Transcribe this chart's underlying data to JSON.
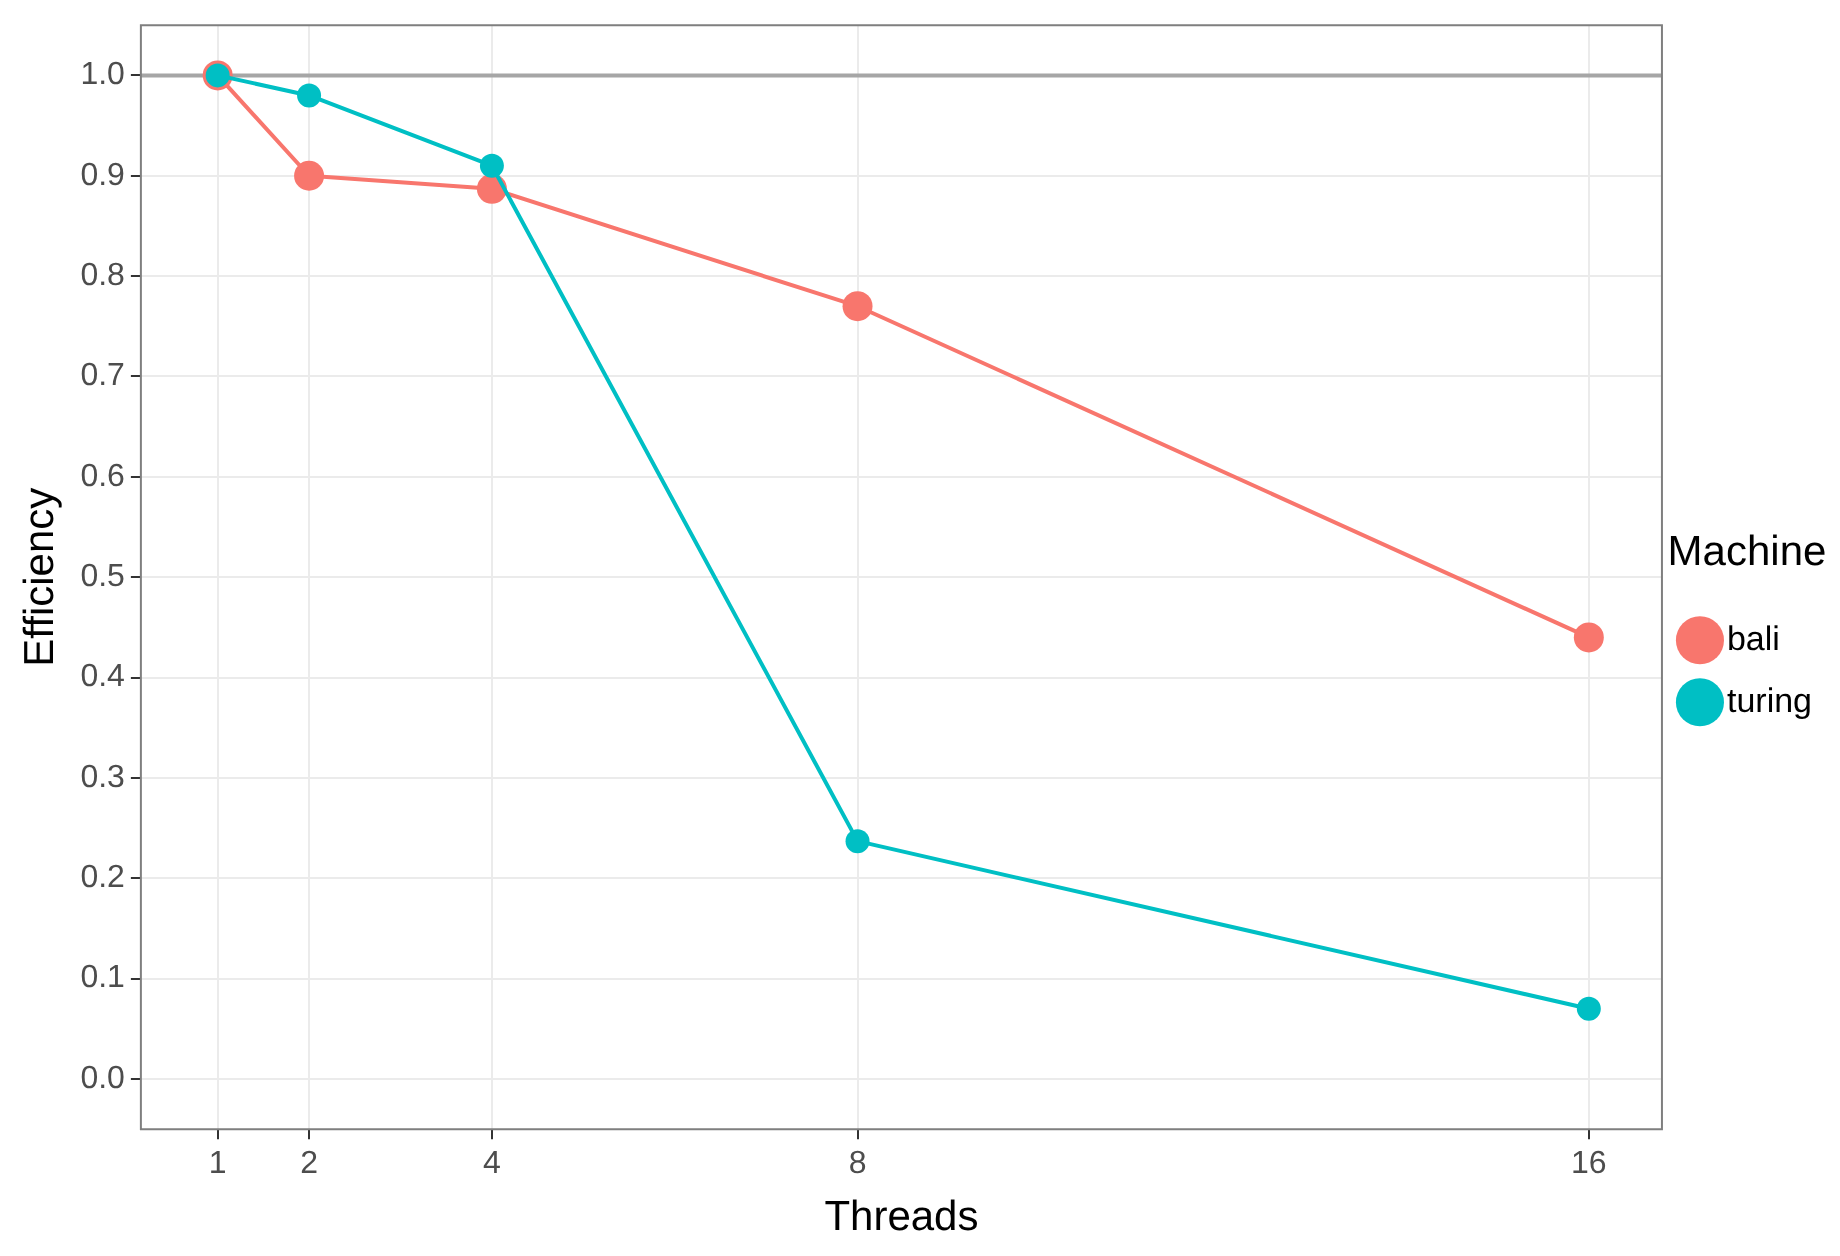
{
  "chart_data": {
    "type": "line",
    "xlabel": "Threads",
    "ylabel": "Efficiency",
    "legend_title": "Machine",
    "x": [
      1,
      2,
      4,
      8,
      16
    ],
    "series": [
      {
        "name": "bali",
        "color": "#f8766d",
        "values": [
          1.0,
          0.9,
          0.887,
          0.77,
          0.44
        ]
      },
      {
        "name": "turing",
        "color": "#00bfc4",
        "values": [
          1.0,
          0.98,
          0.91,
          0.237,
          0.07
        ]
      }
    ],
    "xlim": [
      0.16,
      16.8
    ],
    "xticks": [
      1,
      2,
      4,
      8,
      16
    ],
    "ylim": [
      -0.05,
      1.05
    ],
    "yticks": [
      {
        "value": 0,
        "label": "0.0"
      },
      0.1,
      0.2,
      0.3,
      0.4,
      0.5,
      0.6,
      0.7,
      0.8,
      0.9,
      {
        "value": 1,
        "label": "1.0"
      }
    ],
    "ref_lines": [
      {
        "axis": "y",
        "value": 1.0,
        "color": "#a6a6a6"
      }
    ],
    "grid": true,
    "legend": "right",
    "marker": "circle",
    "line_style": "solid"
  }
}
